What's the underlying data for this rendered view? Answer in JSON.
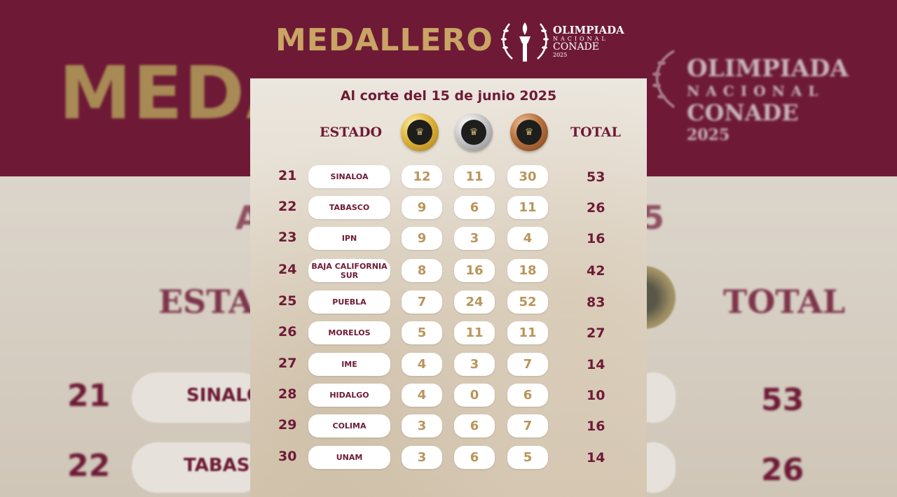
{
  "background": {
    "title": "MEDALLERO",
    "logo_line1": "OLIMPIADA",
    "logo_line2": "NACIONAL",
    "logo_line3": "CONADE",
    "logo_line4": "2025",
    "estado": "ESTAD",
    "total": "TOTAL",
    "a_fragment": "A",
    "five_fragment": "5",
    "rows": [
      {
        "rank": "21",
        "name": "SINALO",
        "total": "53"
      },
      {
        "rank": "22",
        "name": "TABASC",
        "total": "26"
      }
    ]
  },
  "card": {
    "title": "MEDALLERO",
    "logo": {
      "line1": "OLIMPIADA",
      "line2": "NACIONAL",
      "line3": "CONADE",
      "line4": "2025"
    },
    "subtitle": "Al corte del 15 de junio 2025",
    "col_estado": "ESTADO",
    "col_total": "TOTAL",
    "medals": [
      "gold-medal-icon",
      "silver-medal-icon",
      "bronze-medal-icon"
    ],
    "rows": [
      {
        "rank": "21",
        "name": "SINALOA",
        "gold": "12",
        "silver": "11",
        "bronze": "30",
        "total": "53"
      },
      {
        "rank": "22",
        "name": "TABASCO",
        "gold": "9",
        "silver": "6",
        "bronze": "11",
        "total": "26"
      },
      {
        "rank": "23",
        "name": "IPN",
        "gold": "9",
        "silver": "3",
        "bronze": "4",
        "total": "16"
      },
      {
        "rank": "24",
        "name": "BAJA CALIFORNIA SUR",
        "gold": "8",
        "silver": "16",
        "bronze": "18",
        "total": "42"
      },
      {
        "rank": "25",
        "name": "PUEBLA",
        "gold": "7",
        "silver": "24",
        "bronze": "52",
        "total": "83"
      },
      {
        "rank": "26",
        "name": "MORELOS",
        "gold": "5",
        "silver": "11",
        "bronze": "11",
        "total": "27"
      },
      {
        "rank": "27",
        "name": "IME",
        "gold": "4",
        "silver": "3",
        "bronze": "7",
        "total": "14"
      },
      {
        "rank": "28",
        "name": "HIDALGO",
        "gold": "4",
        "silver": "0",
        "bronze": "6",
        "total": "10"
      },
      {
        "rank": "29",
        "name": "COLIMA",
        "gold": "3",
        "silver": "6",
        "bronze": "7",
        "total": "16"
      },
      {
        "rank": "30",
        "name": "UNAM",
        "gold": "3",
        "silver": "6",
        "bronze": "5",
        "total": "14"
      }
    ]
  },
  "colors": {
    "maroon": "#6e1a36",
    "gold_text": "#c9a464",
    "value_text": "#b8955a"
  }
}
